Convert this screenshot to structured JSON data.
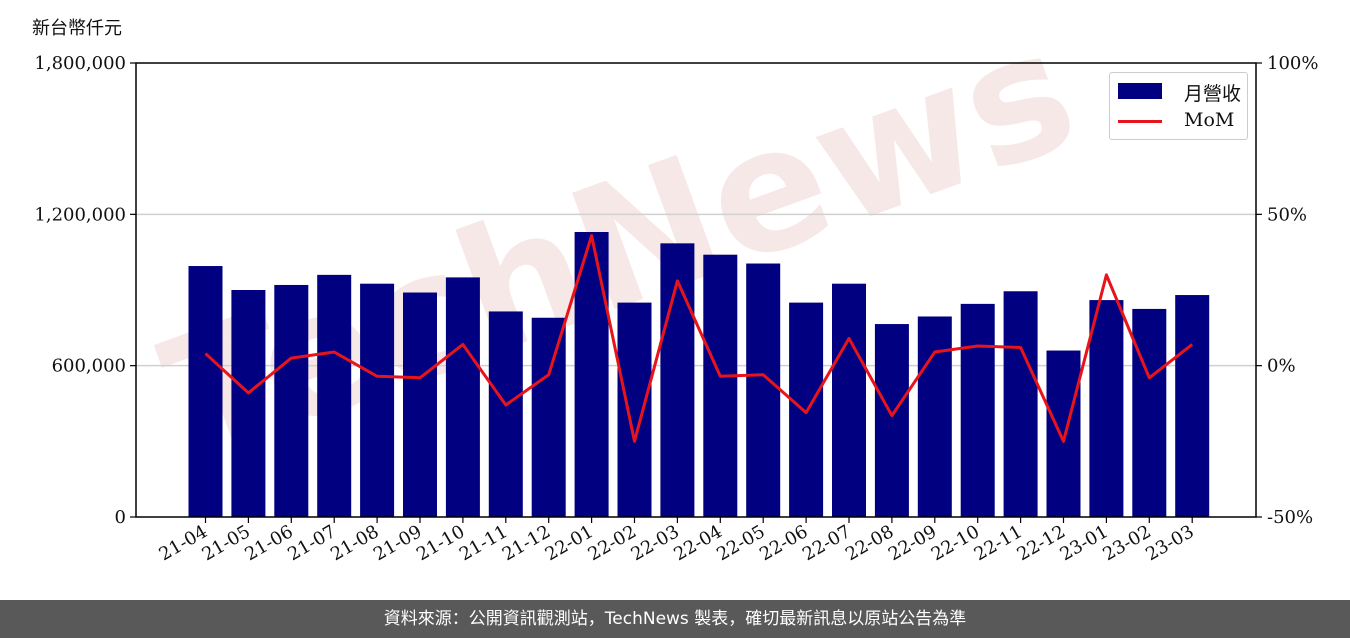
{
  "unit_label": "新台幣仟元",
  "footer_text": "資料來源：公開資訊觀測站，TechNews 製表，確切最新訊息以原站公告為準",
  "watermark": "TechNews",
  "colors": {
    "bar": "#000080",
    "line": "#e8141b",
    "footer_bg": "#595959",
    "grid": "#d0d0d0"
  },
  "chart_data": {
    "type": "bar",
    "categories": [
      "21-04",
      "21-05",
      "21-06",
      "21-07",
      "21-08",
      "21-09",
      "21-10",
      "21-11",
      "21-12",
      "22-01",
      "22-02",
      "22-03",
      "22-04",
      "22-05",
      "22-06",
      "22-07",
      "22-08",
      "22-09",
      "22-10",
      "22-11",
      "22-12",
      "23-01",
      "23-02",
      "23-03"
    ],
    "series": [
      {
        "name": "月營收",
        "axis": "left",
        "type": "bar",
        "values": [
          995000,
          900000,
          920000,
          960000,
          925000,
          890000,
          950000,
          815000,
          790000,
          1130000,
          850000,
          1085000,
          1040000,
          1005000,
          850000,
          925000,
          765000,
          795000,
          845000,
          895000,
          660000,
          860000,
          825000,
          880000
        ]
      },
      {
        "name": "MoM",
        "axis": "right",
        "type": "line",
        "values": [
          4,
          -9,
          2.5,
          4.5,
          -3.5,
          -4,
          7,
          -13,
          -3,
          43,
          -25,
          28,
          -3.5,
          -3,
          -15.5,
          9,
          -16.5,
          4.5,
          6.5,
          6,
          -25,
          30,
          -4,
          7
        ]
      }
    ],
    "y_left": {
      "ylim": [
        0,
        1800000
      ],
      "ticks": [
        "0",
        "600,000",
        "1,200,000",
        "1,800,000"
      ],
      "tick_values": [
        0,
        600000,
        1200000,
        1800000
      ]
    },
    "y_right": {
      "ylim": [
        -50,
        100
      ],
      "ticks": [
        "-50%",
        "0%",
        "50%",
        "100%"
      ],
      "tick_values": [
        -50,
        0,
        50,
        100
      ]
    },
    "grid": true,
    "legend_position": "top-right"
  }
}
